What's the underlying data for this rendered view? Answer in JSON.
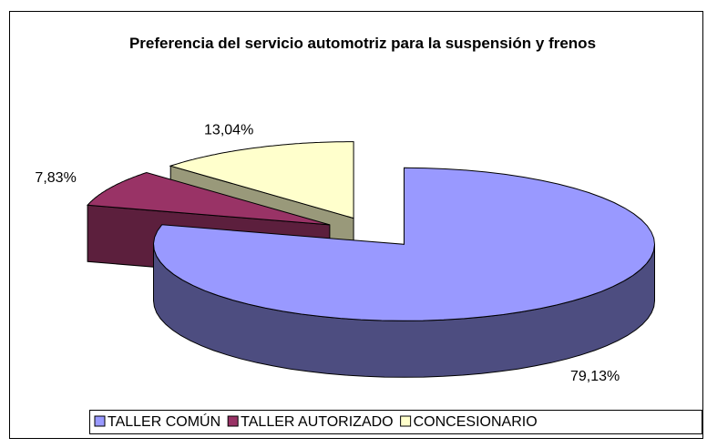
{
  "chart_data": {
    "type": "pie3d",
    "title": "Preferencia del servicio automotriz para la suspensión y frenos",
    "categories": [
      "TALLER COMÚN",
      "TALLER AUTORIZADO",
      "CONCESIONARIO"
    ],
    "values": [
      79.13,
      7.83,
      13.04
    ],
    "value_labels": [
      "79,13%",
      "7,83%",
      "13,04%"
    ],
    "colors": [
      "#9999ff",
      "#993366",
      "#ffffcc"
    ],
    "legend": "bottom"
  }
}
